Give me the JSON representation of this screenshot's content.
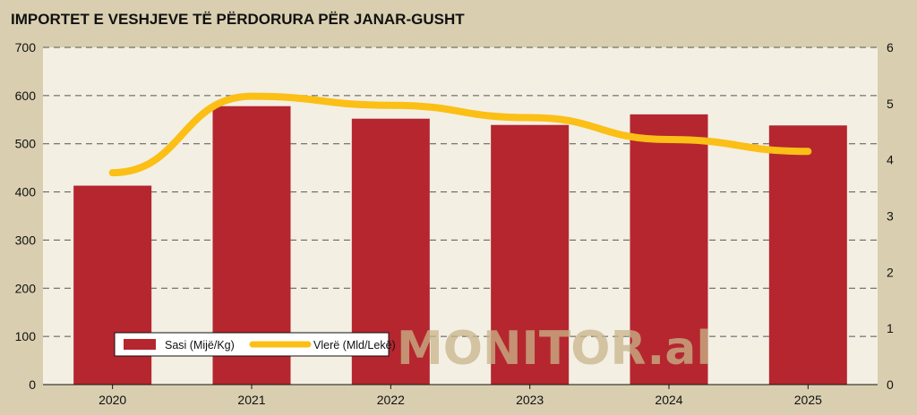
{
  "chart_data": {
    "type": "bar",
    "title": "IMPORTET E VESHJEVE TË PËRDORURA PËR JANAR-GUSHT",
    "categories": [
      "2020",
      "2021",
      "2022",
      "2023",
      "2024",
      "2025"
    ],
    "series": [
      {
        "name": "Sasi (Mijë/Kg)",
        "type": "bar",
        "axis": "left",
        "values": [
          413,
          578,
          552,
          539,
          561,
          538
        ]
      },
      {
        "name": "Vlerë (Mld/Lekë)",
        "type": "line",
        "axis": "right",
        "values": [
          3.77,
          5.13,
          4.97,
          4.75,
          4.36,
          4.15
        ]
      }
    ],
    "y_left": {
      "min": 0,
      "max": 700,
      "ticks": [
        "0",
        "100",
        "200",
        "300",
        "400",
        "500",
        "600",
        "700"
      ]
    },
    "y_right": {
      "min": 0,
      "max": 6,
      "ticks": [
        "0",
        "1",
        "2",
        "3",
        "4",
        "5",
        "6"
      ]
    },
    "grid": true,
    "legend_position": "bottom-left",
    "watermark": "MONITOR.al",
    "colors": {
      "page_background": "#d9cfb0",
      "plot_background": "#f3efe3",
      "bar": "#b5262f",
      "line": "#fbbf16",
      "grid": "#555555",
      "text": "#111111"
    }
  }
}
